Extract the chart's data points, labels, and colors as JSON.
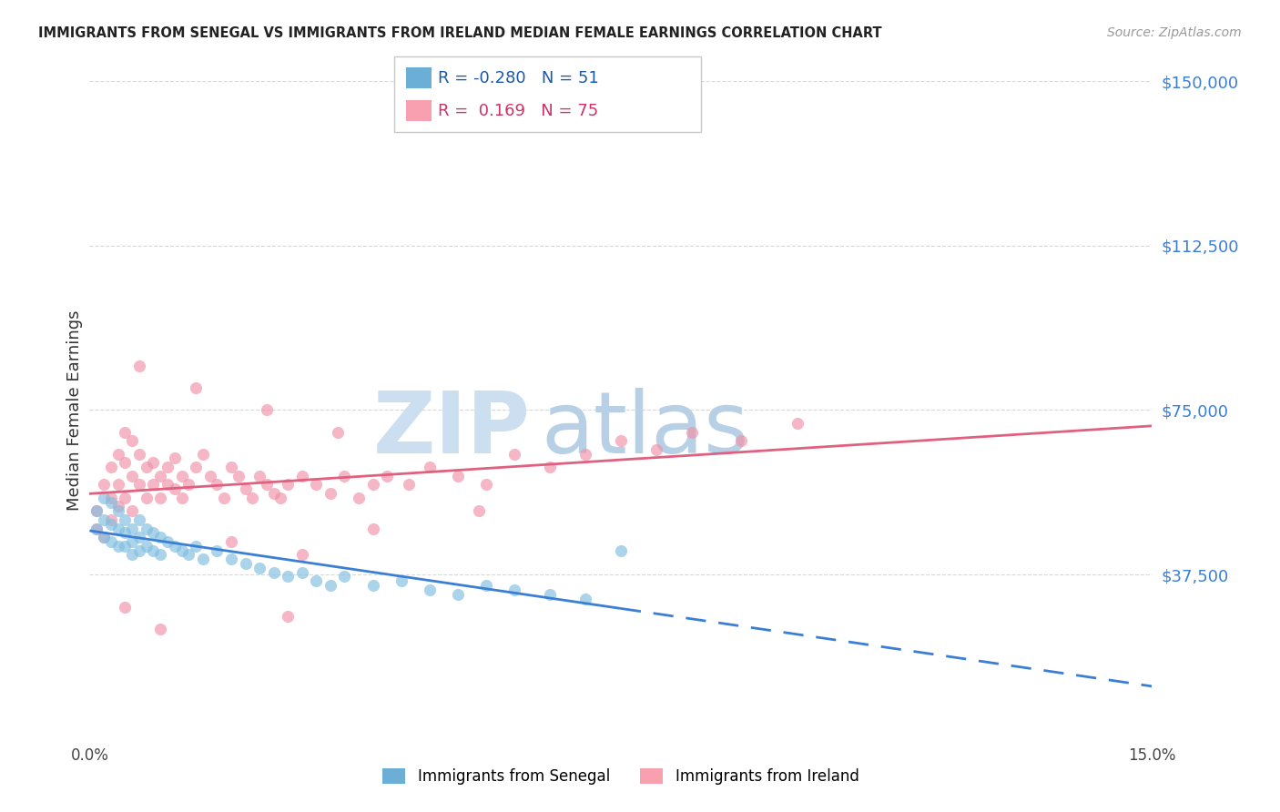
{
  "title": "IMMIGRANTS FROM SENEGAL VS IMMIGRANTS FROM IRELAND MEDIAN FEMALE EARNINGS CORRELATION CHART",
  "source": "Source: ZipAtlas.com",
  "ylabel": "Median Female Earnings",
  "xlim": [
    0.0,
    0.15
  ],
  "ylim": [
    0,
    150000
  ],
  "yticks": [
    0,
    37500,
    75000,
    112500,
    150000
  ],
  "ytick_labels": [
    "",
    "$37,500",
    "$75,000",
    "$112,500",
    "$150,000"
  ],
  "xticks": [
    0.0,
    0.03,
    0.06,
    0.09,
    0.12,
    0.15
  ],
  "xtick_labels": [
    "0.0%",
    "",
    "",
    "",
    "",
    "15.0%"
  ],
  "R_senegal": -0.28,
  "N_senegal": 51,
  "R_ireland": 0.169,
  "N_ireland": 75,
  "watermark_zip_color": "#ccdff0",
  "watermark_atlas_color": "#b8d0e5",
  "axis_label_color": "#3a7fd5",
  "grid_color": "#d8d8d8",
  "title_color": "#222222",
  "senegal_color": "#7fbde0",
  "senegal_alpha": 0.65,
  "ireland_color": "#f090a8",
  "ireland_alpha": 0.65,
  "dot_size": 90,
  "senegal_line_color": "#3a7fd5",
  "ireland_line_color": "#e06080",
  "legend_senegal_color": "#6baed6",
  "legend_ireland_color": "#f9a0b0",
  "senegal_x": [
    0.001,
    0.001,
    0.002,
    0.002,
    0.002,
    0.003,
    0.003,
    0.003,
    0.004,
    0.004,
    0.004,
    0.005,
    0.005,
    0.005,
    0.006,
    0.006,
    0.006,
    0.007,
    0.007,
    0.007,
    0.008,
    0.008,
    0.009,
    0.009,
    0.01,
    0.01,
    0.011,
    0.012,
    0.013,
    0.014,
    0.015,
    0.016,
    0.018,
    0.02,
    0.022,
    0.024,
    0.026,
    0.028,
    0.03,
    0.032,
    0.034,
    0.036,
    0.04,
    0.044,
    0.048,
    0.052,
    0.056,
    0.06,
    0.065,
    0.07,
    0.075
  ],
  "senegal_y": [
    52000,
    48000,
    55000,
    50000,
    46000,
    54000,
    49000,
    45000,
    52000,
    48000,
    44000,
    50000,
    47000,
    44000,
    48000,
    45000,
    42000,
    50000,
    46000,
    43000,
    48000,
    44000,
    47000,
    43000,
    46000,
    42000,
    45000,
    44000,
    43000,
    42000,
    44000,
    41000,
    43000,
    41000,
    40000,
    39000,
    38000,
    37000,
    38000,
    36000,
    35000,
    37000,
    35000,
    36000,
    34000,
    33000,
    35000,
    34000,
    33000,
    32000,
    43000
  ],
  "ireland_x": [
    0.001,
    0.001,
    0.002,
    0.002,
    0.003,
    0.003,
    0.003,
    0.004,
    0.004,
    0.004,
    0.005,
    0.005,
    0.005,
    0.006,
    0.006,
    0.006,
    0.007,
    0.007,
    0.008,
    0.008,
    0.009,
    0.009,
    0.01,
    0.01,
    0.011,
    0.011,
    0.012,
    0.012,
    0.013,
    0.013,
    0.014,
    0.015,
    0.016,
    0.017,
    0.018,
    0.019,
    0.02,
    0.021,
    0.022,
    0.023,
    0.024,
    0.025,
    0.026,
    0.027,
    0.028,
    0.03,
    0.032,
    0.034,
    0.036,
    0.038,
    0.04,
    0.042,
    0.045,
    0.048,
    0.052,
    0.056,
    0.06,
    0.065,
    0.07,
    0.075,
    0.08,
    0.085,
    0.092,
    0.1,
    0.007,
    0.015,
    0.025,
    0.035,
    0.02,
    0.03,
    0.005,
    0.01,
    0.04,
    0.055,
    0.028
  ],
  "ireland_y": [
    52000,
    48000,
    58000,
    46000,
    62000,
    55000,
    50000,
    65000,
    58000,
    53000,
    70000,
    63000,
    55000,
    68000,
    60000,
    52000,
    65000,
    58000,
    62000,
    55000,
    63000,
    58000,
    60000,
    55000,
    62000,
    58000,
    64000,
    57000,
    60000,
    55000,
    58000,
    62000,
    65000,
    60000,
    58000,
    55000,
    62000,
    60000,
    57000,
    55000,
    60000,
    58000,
    56000,
    55000,
    58000,
    60000,
    58000,
    56000,
    60000,
    55000,
    58000,
    60000,
    58000,
    62000,
    60000,
    58000,
    65000,
    62000,
    65000,
    68000,
    66000,
    70000,
    68000,
    72000,
    85000,
    80000,
    75000,
    70000,
    45000,
    42000,
    30000,
    25000,
    48000,
    52000,
    28000
  ]
}
